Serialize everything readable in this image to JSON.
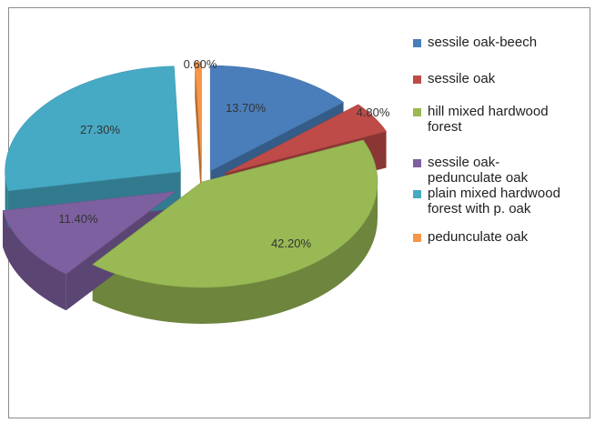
{
  "chart_data": {
    "type": "pie",
    "style": "3d-exploded",
    "title": "",
    "categories": [
      "sessile oak-beech",
      "sessile oak",
      "hill mixed hardwood forest",
      "sessile oak-pedunculate oak",
      "plain mixed hardwood forest with p. oak",
      "pedunculate oak"
    ],
    "values": [
      13.7,
      4.8,
      42.2,
      11.4,
      27.3,
      0.6
    ],
    "data_labels": [
      "13.70%",
      "4.80%",
      "42.20%",
      "11.40%",
      "27.30%",
      "0.60%"
    ],
    "colors": [
      "#4a7ebb",
      "#be4b48",
      "#98b954",
      "#7d60a0",
      "#46aac5",
      "#f79646"
    ],
    "legend": {
      "placement": "right",
      "entries": [
        {
          "lines": [
            "sessile oak-beech"
          ]
        },
        {
          "lines": [
            "sessile oak"
          ]
        },
        {
          "lines": [
            "hill mixed hardwood",
            "forest"
          ]
        },
        {
          "lines": [
            "sessile oak-",
            "pedunculate oak"
          ]
        },
        {
          "lines": [
            "plain mixed hardwood",
            "forest with p. oak"
          ]
        },
        {
          "lines": [
            "pedunculate oak"
          ]
        }
      ]
    }
  }
}
